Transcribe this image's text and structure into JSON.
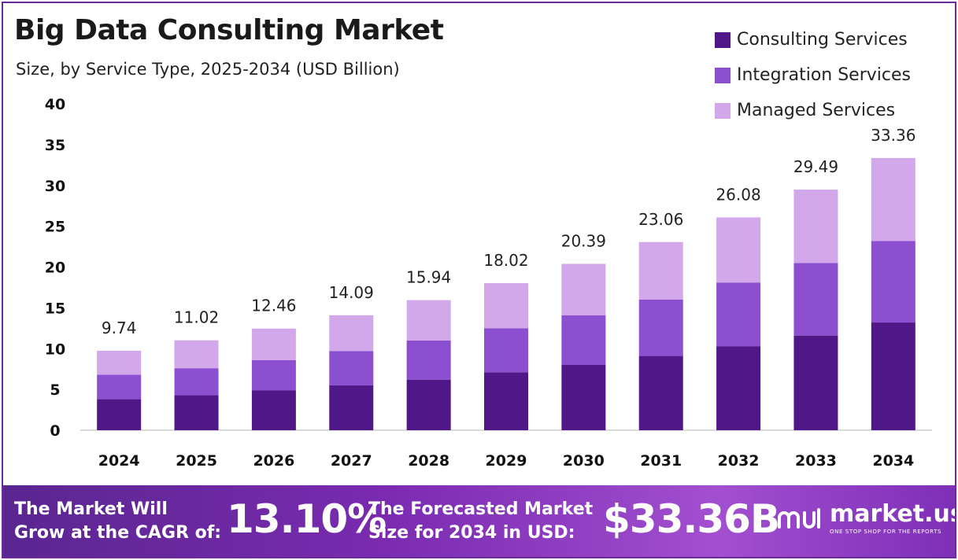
{
  "header": {
    "title": "Big Data Consulting Market",
    "subtitle": "Size, by Service Type, 2025-2034 (USD Billion)"
  },
  "colors": {
    "consulting": "#4f1787",
    "integration": "#8b4fcf",
    "managed": "#d3a8eb",
    "frame": "#6a2c9a"
  },
  "chart_data": {
    "type": "bar",
    "stacked": true,
    "categories": [
      "2024",
      "2025",
      "2026",
      "2027",
      "2028",
      "2029",
      "2030",
      "2031",
      "2032",
      "2033",
      "2034"
    ],
    "series": [
      {
        "name": "Consulting Services",
        "values": [
          3.8,
          4.3,
          4.9,
          5.5,
          6.2,
          7.1,
          8.0,
          9.1,
          10.3,
          11.6,
          13.2
        ]
      },
      {
        "name": "Integration Services",
        "values": [
          3.0,
          3.3,
          3.7,
          4.2,
          4.8,
          5.4,
          6.1,
          6.9,
          7.8,
          8.9,
          10.0
        ]
      },
      {
        "name": "Managed Services",
        "values": [
          2.94,
          3.42,
          3.86,
          4.39,
          4.94,
          5.52,
          6.29,
          7.06,
          7.98,
          8.99,
          10.16
        ]
      }
    ],
    "totals": [
      "9.74",
      "11.02",
      "12.46",
      "14.09",
      "15.94",
      "18.02",
      "20.39",
      "23.06",
      "26.08",
      "29.49",
      "33.36"
    ],
    "yticks": [
      "0",
      "5",
      "10",
      "15",
      "20",
      "25",
      "30",
      "35",
      "40"
    ],
    "ylim": [
      0,
      40
    ],
    "grid": false,
    "legend_position": "top-right"
  },
  "banner": {
    "cagr_line1": "The Market Will",
    "cagr_line2": "Grow at the CAGR of:",
    "cagr_value": "13.10%",
    "forecast_line1": "The Forecasted Market",
    "forecast_line2": "Size for 2034 in USD:",
    "forecast_value": "$33.36B",
    "brand_name": "market.us",
    "brand_tagline": "ONE STOP SHOP FOR THE REPORTS"
  }
}
